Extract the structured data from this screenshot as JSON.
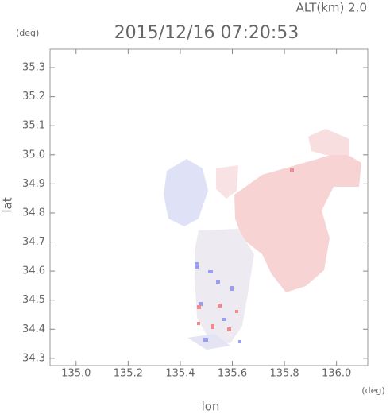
{
  "chart_data": {
    "type": "map",
    "title": "2015/12/16 07:20:53",
    "altitude_label": "ALT(km) 2.0",
    "x_label": "lon",
    "x_unit": "(deg)",
    "y_label": "lat",
    "y_unit": "(deg)",
    "xlim": [
      134.9,
      136.12
    ],
    "ylim": [
      34.275,
      35.363
    ],
    "xticks": [
      {
        "value": 135.0,
        "label": "135.0"
      },
      135.2,
      135.4,
      135.6,
      135.8,
      {
        "value": 136.0,
        "label": "136.0"
      }
    ],
    "yticks": [
      34.3,
      34.4,
      34.5,
      34.6,
      34.7,
      34.8,
      34.9,
      {
        "value": 35.0,
        "label": "35.0"
      },
      35.1,
      35.2,
      35.3
    ]
  }
}
